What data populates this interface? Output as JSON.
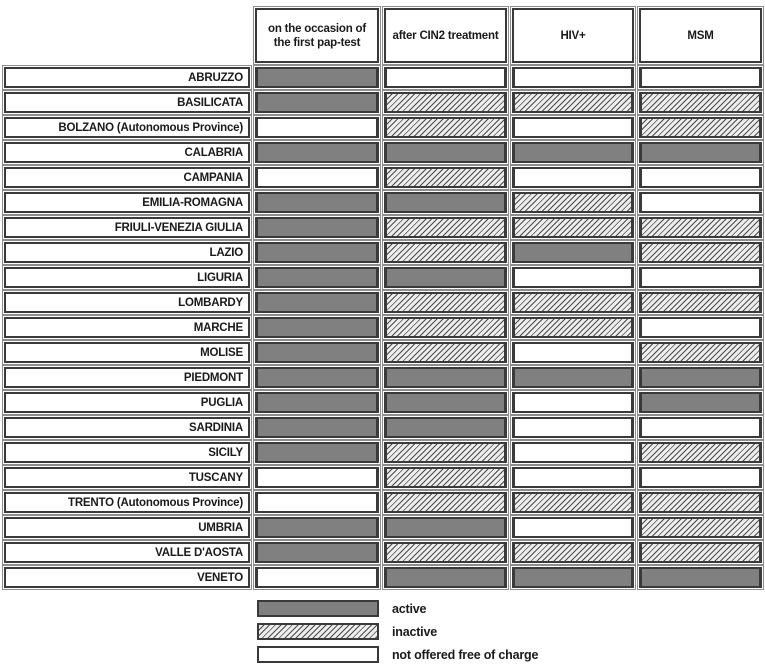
{
  "chart_data": {
    "type": "table",
    "description": "Free-of-charge HPV vaccination offer status by Italian region for specific target situations",
    "columns": [
      {
        "key": "pap_test",
        "label": "on the occasion of the first pap-test"
      },
      {
        "key": "cin2",
        "label": "after CIN2 treatment"
      },
      {
        "key": "hiv",
        "label": "HIV+"
      },
      {
        "key": "msm",
        "label": "MSM"
      }
    ],
    "state_values": [
      "active",
      "inactive",
      "not_offered"
    ],
    "rows": [
      {
        "region": "ABRUZZO",
        "states": [
          "active",
          "not_offered",
          "not_offered",
          "not_offered"
        ]
      },
      {
        "region": "BASILICATA",
        "states": [
          "active",
          "inactive",
          "inactive",
          "inactive"
        ]
      },
      {
        "region": "BOLZANO (Autonomous Province)",
        "states": [
          "not_offered",
          "inactive",
          "not_offered",
          "inactive"
        ]
      },
      {
        "region": "CALABRIA",
        "states": [
          "active",
          "active",
          "active",
          "active"
        ]
      },
      {
        "region": "CAMPANIA",
        "states": [
          "not_offered",
          "inactive",
          "not_offered",
          "not_offered"
        ]
      },
      {
        "region": "EMILIA-ROMAGNA",
        "states": [
          "active",
          "active",
          "inactive",
          "not_offered"
        ]
      },
      {
        "region": "FRIULI-VENEZIA GIULIA",
        "states": [
          "active",
          "inactive",
          "inactive",
          "inactive"
        ]
      },
      {
        "region": "LAZIO",
        "states": [
          "active",
          "inactive",
          "active",
          "inactive"
        ]
      },
      {
        "region": "LIGURIA",
        "states": [
          "active",
          "active",
          "not_offered",
          "not_offered"
        ]
      },
      {
        "region": "LOMBARDY",
        "states": [
          "active",
          "inactive",
          "inactive",
          "inactive"
        ]
      },
      {
        "region": "MARCHE",
        "states": [
          "active",
          "inactive",
          "inactive",
          "not_offered"
        ]
      },
      {
        "region": "MOLISE",
        "states": [
          "active",
          "inactive",
          "not_offered",
          "inactive"
        ]
      },
      {
        "region": "PIEDMONT",
        "states": [
          "active",
          "active",
          "active",
          "active"
        ]
      },
      {
        "region": "PUGLIA",
        "states": [
          "active",
          "active",
          "not_offered",
          "active"
        ]
      },
      {
        "region": "SARDINIA",
        "states": [
          "active",
          "active",
          "not_offered",
          "not_offered"
        ]
      },
      {
        "region": "SICILY",
        "states": [
          "active",
          "inactive",
          "not_offered",
          "inactive"
        ]
      },
      {
        "region": "TUSCANY",
        "states": [
          "not_offered",
          "inactive",
          "not_offered",
          "not_offered"
        ]
      },
      {
        "region": "TRENTO (Autonomous Province)",
        "states": [
          "not_offered",
          "inactive",
          "inactive",
          "inactive"
        ]
      },
      {
        "region": "UMBRIA",
        "states": [
          "active",
          "active",
          "not_offered",
          "inactive"
        ]
      },
      {
        "region": "VALLE D'AOSTA",
        "states": [
          "active",
          "inactive",
          "inactive",
          "inactive"
        ]
      },
      {
        "region": "VENETO",
        "states": [
          "not_offered",
          "active",
          "active",
          "active"
        ]
      }
    ]
  },
  "legend": {
    "items": [
      {
        "state": "active",
        "label": "active"
      },
      {
        "state": "inactive",
        "label": "inactive"
      },
      {
        "state": "not_offered",
        "label": "not offered free of charge"
      }
    ]
  },
  "colors": {
    "active_fill": "#808080",
    "hatch_line": "#4b4b4b",
    "hatch_bg": "#ededed",
    "border_inner": "#3a3a3a",
    "border_outer": "#8d8d8d"
  }
}
